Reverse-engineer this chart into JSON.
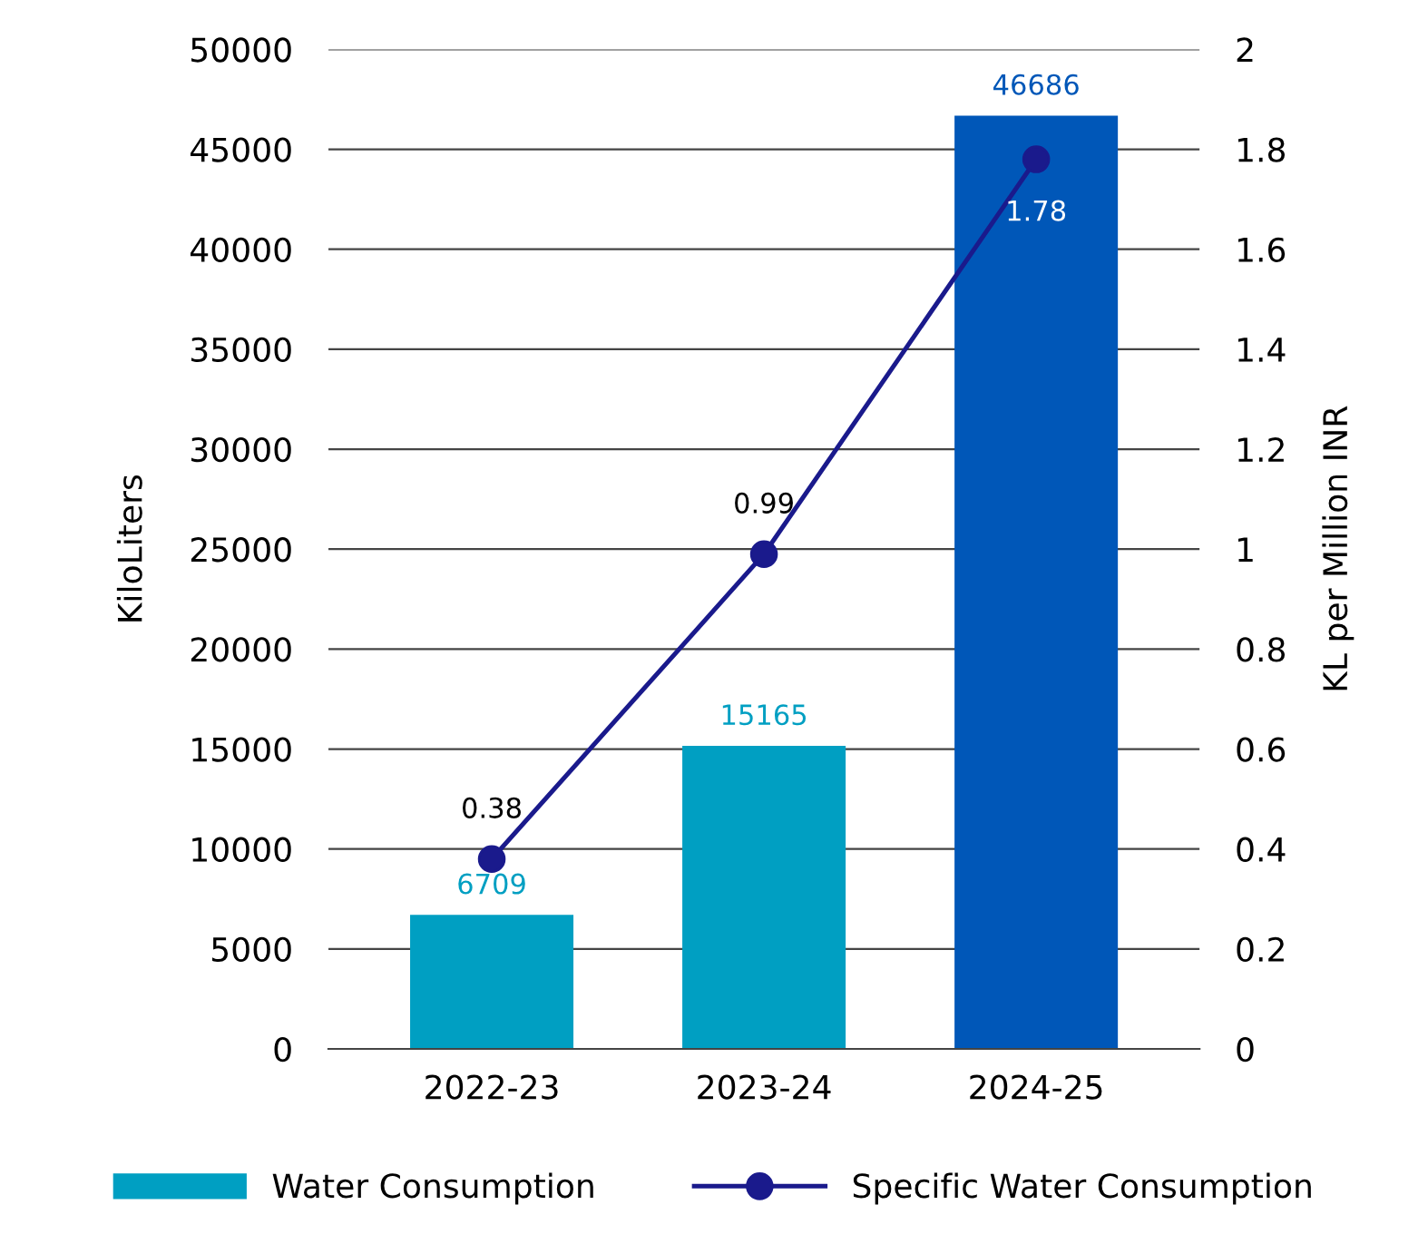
{
  "chart_data": {
    "type": "bar",
    "ylabel": "KiloLiters",
    "y2label": "KL per Million INR",
    "categories": [
      "2022-23",
      "2023-24",
      "2024-25"
    ],
    "series": [
      {
        "name": "Water Consumption",
        "colors": [
          "#009fc2",
          "#009fc2",
          "#0057b8"
        ],
        "color": "#009fc2",
        "values": [
          6709,
          15165,
          46686
        ]
      },
      {
        "name": "Specific Water Consumption",
        "type": "line",
        "axis": "y2",
        "color": "#1a1a8c",
        "marker": "circle",
        "values": [
          0.38,
          0.99,
          1.78
        ]
      }
    ],
    "ylim": [
      0,
      50000
    ],
    "yticks": [
      0,
      5000,
      10000,
      15000,
      20000,
      25000,
      30000,
      35000,
      40000,
      45000,
      50000
    ],
    "y2lim": [
      0,
      2
    ],
    "y2ticks": [
      0,
      0.2,
      0.4,
      0.6,
      0.8,
      1,
      1.2,
      1.4,
      1.6,
      1.8,
      2
    ],
    "grid": "y",
    "legend": "bottom",
    "data_labels": true
  }
}
